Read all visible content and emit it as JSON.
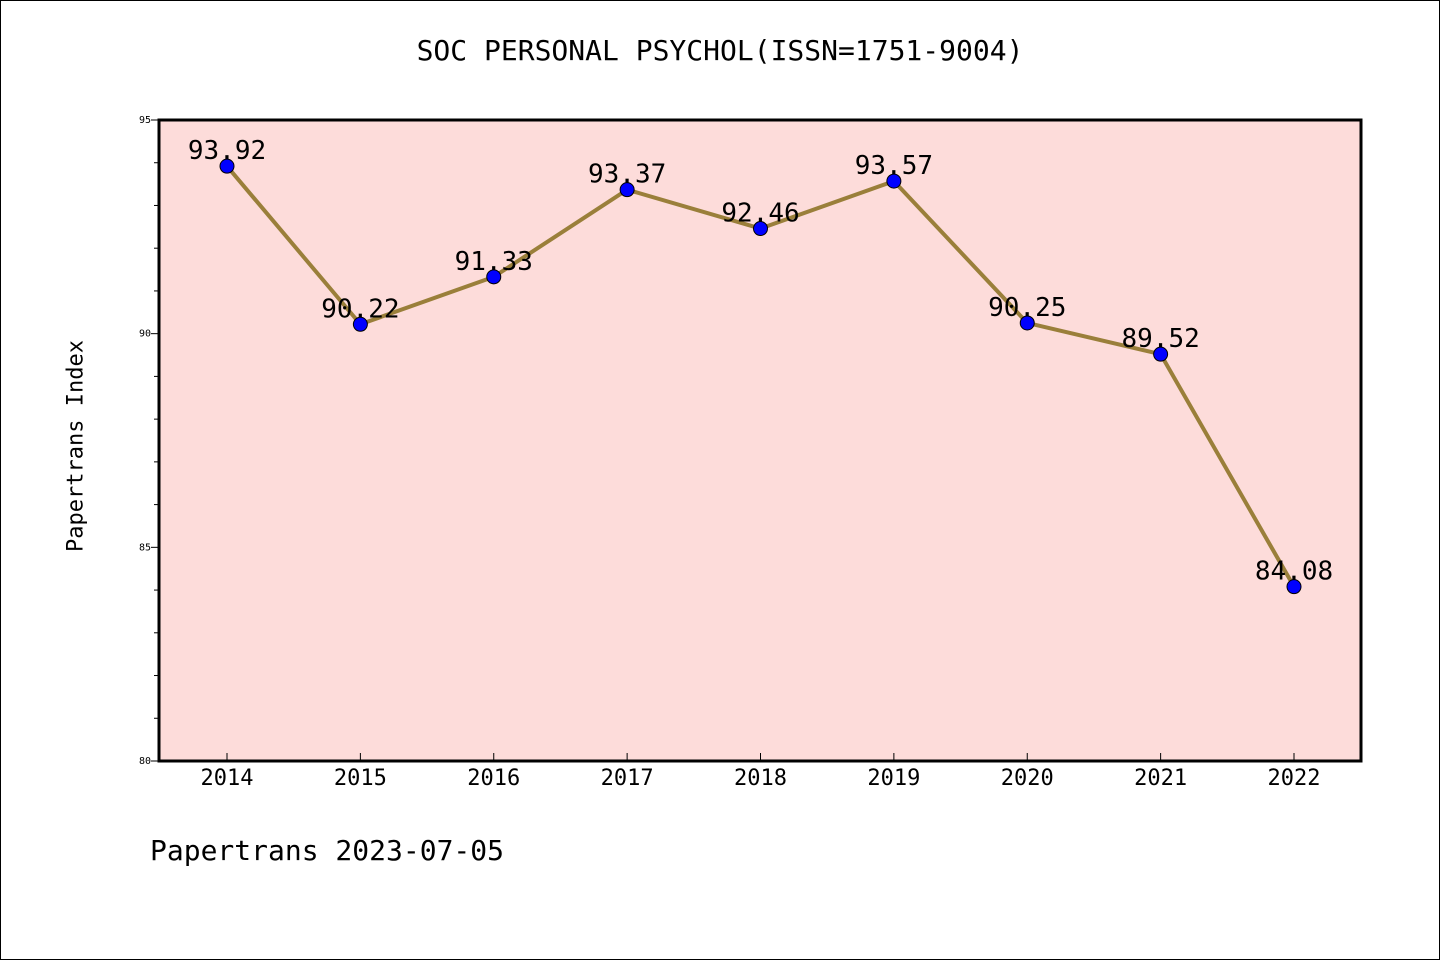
{
  "chart_data": {
    "type": "line",
    "title": "SOC PERSONAL PSYCHOL(ISSN=1751-9004)",
    "ylabel": "Papertrans Index",
    "xlabel": "",
    "categories": [
      "2014",
      "2015",
      "2016",
      "2017",
      "2018",
      "2019",
      "2020",
      "2021",
      "2022"
    ],
    "series": [
      {
        "values": [
          93.92,
          90.22,
          91.33,
          93.37,
          92.46,
          93.57,
          90.25,
          89.52,
          84.08
        ]
      }
    ],
    "data_labels": [
      "93.92",
      "90.22",
      "91.33",
      "93.37",
      "92.46",
      "93.57",
      "90.25",
      "89.52",
      "84.08"
    ],
    "ylim": [
      80,
      95
    ],
    "yticks": [
      80,
      85,
      90,
      95
    ],
    "grid": false,
    "colors": {
      "line": "#9a7f3a",
      "marker": "#0000ff",
      "plot_background": "#fddcda"
    }
  },
  "footer": "Papertrans 2023-07-05"
}
